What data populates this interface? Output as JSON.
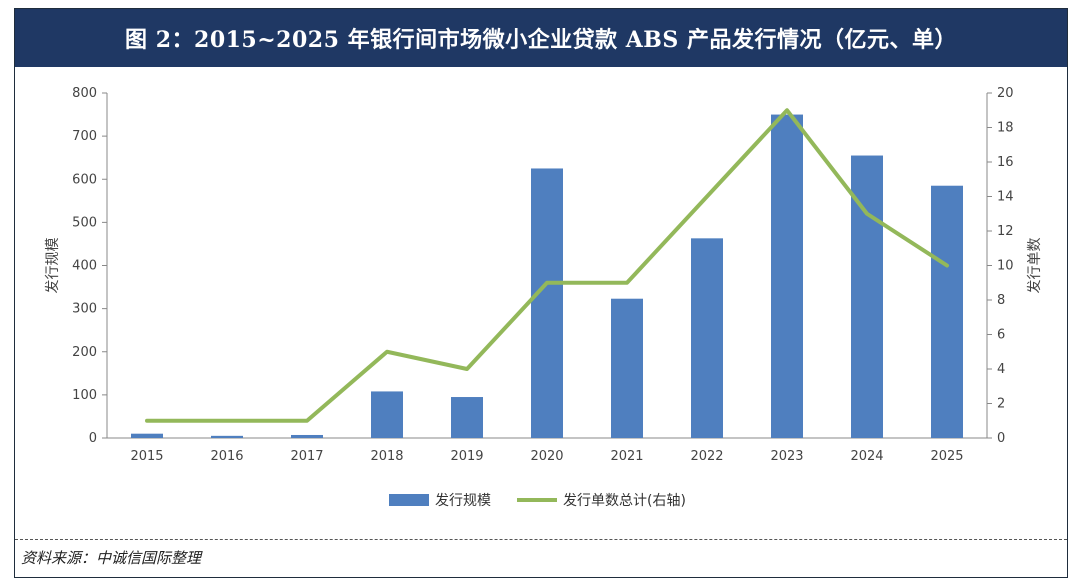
{
  "title": "图 2：2015~2025 年银行间市场微小企业贷款 ABS 产品发行情况（亿元、单）",
  "source": "资料来源：中诚信国际整理",
  "colors": {
    "bar": "#4f7fbf",
    "line": "#93b85a",
    "title_bg": "#1f3864"
  },
  "chart_data": {
    "type": "bar",
    "categories": [
      "2015",
      "2016",
      "2017",
      "2018",
      "2019",
      "2020",
      "2021",
      "2022",
      "2023",
      "2024",
      "2025"
    ],
    "series": [
      {
        "name": "发行规模",
        "type": "bar",
        "axis": "left",
        "values": [
          10,
          5,
          7,
          108,
          95,
          625,
          323,
          463,
          750,
          655,
          585
        ]
      },
      {
        "name": "发行单数总计(右轴)",
        "type": "line",
        "axis": "right",
        "values": [
          1,
          1,
          1,
          5,
          4,
          9,
          9,
          14,
          19,
          13,
          10
        ]
      }
    ],
    "ylabel": "发行规模",
    "ylabel_right": "发行单数",
    "ylim": [
      0,
      800
    ],
    "ylim_right": [
      0,
      20
    ],
    "yticks": [
      "0",
      "100",
      "200",
      "300",
      "400",
      "500",
      "600",
      "700",
      "800"
    ],
    "yticks_right": [
      "0",
      "2",
      "4",
      "6",
      "8",
      "10",
      "12",
      "14",
      "16",
      "18",
      "20"
    ],
    "grid": false,
    "legend_position": "bottom"
  }
}
